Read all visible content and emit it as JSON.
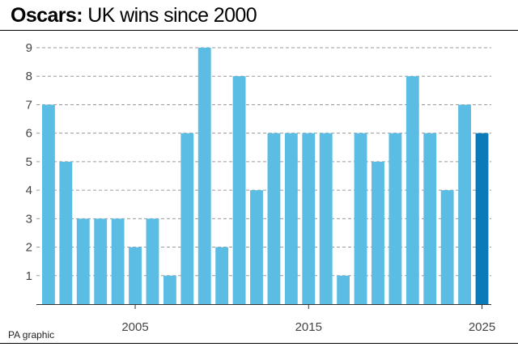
{
  "header": {
    "title_bold": "Oscars:",
    "title_rest": " UK wins since 2000"
  },
  "footer": {
    "credit": "PA graphic"
  },
  "colors": {
    "bar": "#5bbde4",
    "highlight": "#0b7ab8",
    "grid": "#9a9a9a"
  },
  "chart_data": {
    "type": "bar",
    "title": "Oscars: UK wins since 2000",
    "xlabel": "",
    "ylabel": "",
    "categories": [
      2000,
      2001,
      2002,
      2003,
      2004,
      2005,
      2006,
      2007,
      2008,
      2009,
      2010,
      2011,
      2012,
      2013,
      2014,
      2015,
      2016,
      2017,
      2018,
      2019,
      2020,
      2021,
      2022,
      2023,
      2024,
      2025
    ],
    "values": [
      7,
      5,
      3,
      3,
      3,
      2,
      3,
      1,
      6,
      9,
      2,
      8,
      4,
      6,
      6,
      6,
      6,
      1,
      6,
      5,
      6,
      8,
      6,
      4,
      7,
      6
    ],
    "highlight_category": 2025,
    "ylim": [
      0,
      9
    ],
    "yticks": [
      1,
      2,
      3,
      4,
      5,
      6,
      7,
      8,
      9
    ],
    "xticks": [
      2005,
      2015,
      2025
    ],
    "grid": true
  }
}
